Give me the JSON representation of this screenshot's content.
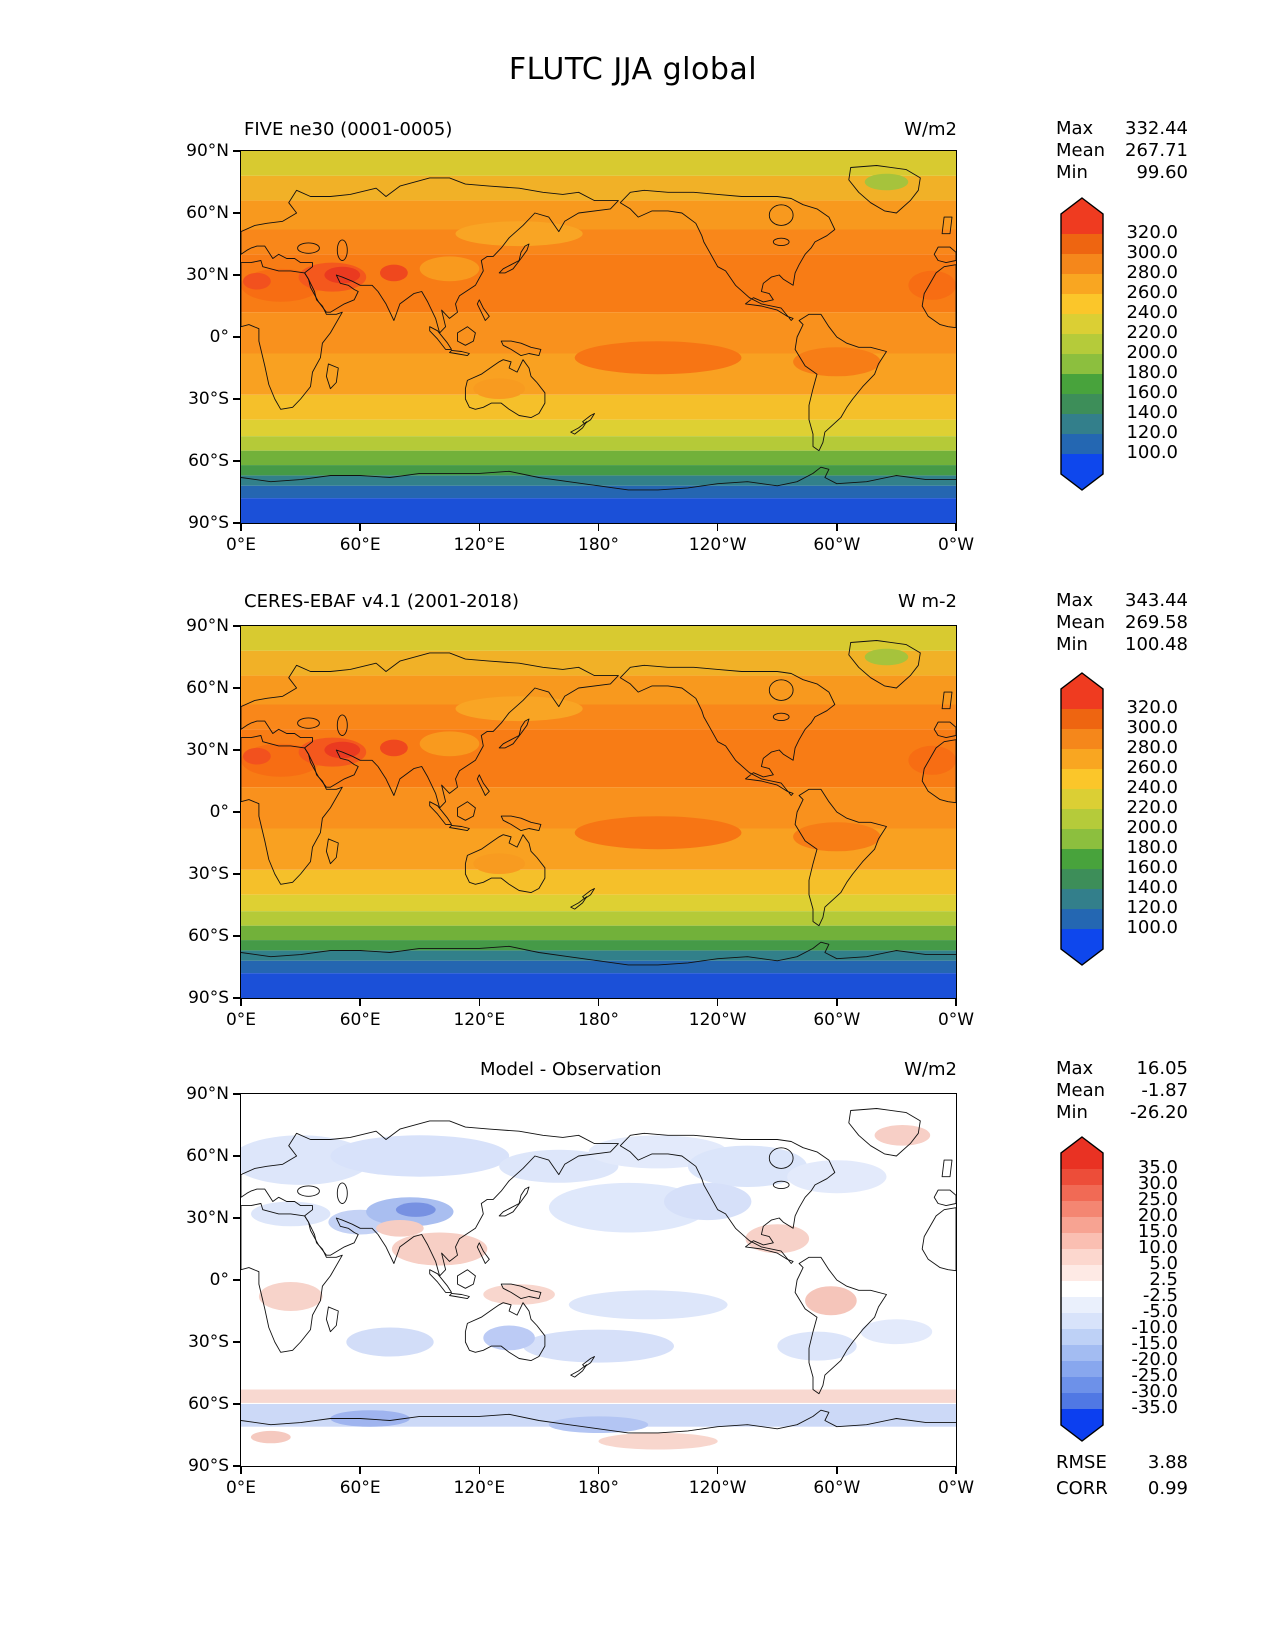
{
  "figure": {
    "title": "FLUTC JJA global"
  },
  "axes": {
    "lat_labels": [
      "90°N",
      "60°N",
      "30°N",
      "0°",
      "30°S",
      "60°S",
      "90°S"
    ],
    "lon_labels": [
      "0°E",
      "60°E",
      "120°E",
      "180°",
      "120°W",
      "60°W",
      "0°W"
    ]
  },
  "panels": [
    {
      "title": "FIVE ne30 (0001-0005)",
      "unit": "W/m2",
      "stats": [
        {
          "label": "Max",
          "value": "332.44"
        },
        {
          "label": "Mean",
          "value": "267.71"
        },
        {
          "label": "Min",
          "value": "99.60"
        }
      ],
      "colorbar": {
        "seg_h": 20,
        "labels": [
          "320.0",
          "300.0",
          "280.0",
          "260.0",
          "240.0",
          "220.0",
          "200.0",
          "180.0",
          "160.0",
          "140.0",
          "120.0",
          "100.0"
        ],
        "colors": [
          "#ef3b20",
          "#ee6511",
          "#f5871b",
          "#f9a621",
          "#fbc62a",
          "#dbcf34",
          "#b5cb3a",
          "#8cbf3e",
          "#48a33c",
          "#3d8e59",
          "#337f8b",
          "#2467b2",
          "#0e47ed"
        ]
      }
    },
    {
      "title": "CERES-EBAF v4.1 (2001-2018)",
      "unit": "W m-2",
      "stats": [
        {
          "label": "Max",
          "value": "343.44"
        },
        {
          "label": "Mean",
          "value": "269.58"
        },
        {
          "label": "Min",
          "value": "100.48"
        }
      ],
      "colorbar": {
        "seg_h": 20,
        "labels": [
          "320.0",
          "300.0",
          "280.0",
          "260.0",
          "240.0",
          "220.0",
          "200.0",
          "180.0",
          "160.0",
          "140.0",
          "120.0",
          "100.0"
        ],
        "colors": [
          "#ef3b20",
          "#ee6511",
          "#f5871b",
          "#f9a621",
          "#fbc62a",
          "#dbcf34",
          "#b5cb3a",
          "#8cbf3e",
          "#48a33c",
          "#3d8e59",
          "#337f8b",
          "#2467b2",
          "#0e47ed"
        ]
      }
    },
    {
      "title": "Model - Observation",
      "unit": "W/m2",
      "stats": [
        {
          "label": "Max",
          "value": "16.05"
        },
        {
          "label": "Mean",
          "value": "-1.87"
        },
        {
          "label": "Min",
          "value": "-26.20"
        }
      ],
      "colorbar": {
        "seg_h": 16,
        "labels": [
          "35.0",
          "30.0",
          "25.0",
          "20.0",
          "15.0",
          "10.0",
          "5.0",
          "2.5",
          "-2.5",
          "-5.0",
          "-10.0",
          "-15.0",
          "-20.0",
          "-25.0",
          "-30.0",
          "-35.0"
        ],
        "colors": [
          "#e93223",
          "#ed4d39",
          "#f16a55",
          "#f48672",
          "#f7a392",
          "#fabfb2",
          "#fcd7ce",
          "#feeae5",
          "#ffffff",
          "#eaf0fc",
          "#d8e3fa",
          "#bed1f6",
          "#a3bcf2",
          "#88a7ee",
          "#6d91e9",
          "#5078e4",
          "#0c3ff0"
        ]
      },
      "metrics": [
        {
          "label": "RMSE",
          "value": "3.88"
        },
        {
          "label": "CORR",
          "value": "0.99"
        }
      ]
    }
  ],
  "chart_data": [
    {
      "type": "heatmap",
      "variable": "FLUTC",
      "season": "JJA",
      "region": "global",
      "title": "FIVE ne30 (0001-0005)",
      "units": "W/m2",
      "projection": "equirectangular",
      "lon_range": [
        0,
        360
      ],
      "lat_range": [
        -90,
        90
      ],
      "x_tick_labels": [
        "0°E",
        "60°E",
        "120°E",
        "180°",
        "120°W",
        "60°W",
        "0°W"
      ],
      "y_tick_labels": [
        "90°N",
        "60°N",
        "30°N",
        "0°",
        "30°S",
        "60°S",
        "90°S"
      ],
      "stats": {
        "max": 332.44,
        "mean": 267.71,
        "min": 99.6
      },
      "contour_levels": [
        100,
        120,
        140,
        160,
        180,
        200,
        220,
        240,
        260,
        280,
        300,
        320
      ],
      "palette_top_to_bottom": [
        "#ef3b20",
        "#ee6511",
        "#f5871b",
        "#f9a621",
        "#fbc62a",
        "#dbcf34",
        "#b5cb3a",
        "#8cbf3e",
        "#48a33c",
        "#3d8e59",
        "#337f8b",
        "#2467b2",
        "#0e47ed"
      ]
    },
    {
      "type": "heatmap",
      "variable": "FLUTC",
      "season": "JJA",
      "region": "global",
      "title": "CERES-EBAF v4.1 (2001-2018)",
      "units": "W m-2",
      "projection": "equirectangular",
      "lon_range": [
        0,
        360
      ],
      "lat_range": [
        -90,
        90
      ],
      "x_tick_labels": [
        "0°E",
        "60°E",
        "120°E",
        "180°",
        "120°W",
        "60°W",
        "0°W"
      ],
      "y_tick_labels": [
        "90°N",
        "60°N",
        "30°N",
        "0°",
        "30°S",
        "60°S",
        "90°S"
      ],
      "stats": {
        "max": 343.44,
        "mean": 269.58,
        "min": 100.48
      },
      "contour_levels": [
        100,
        120,
        140,
        160,
        180,
        200,
        220,
        240,
        260,
        280,
        300,
        320
      ],
      "palette_top_to_bottom": [
        "#ef3b20",
        "#ee6511",
        "#f5871b",
        "#f9a621",
        "#fbc62a",
        "#dbcf34",
        "#b5cb3a",
        "#8cbf3e",
        "#48a33c",
        "#3d8e59",
        "#337f8b",
        "#2467b2",
        "#0e47ed"
      ]
    },
    {
      "type": "heatmap",
      "variable": "FLUTC difference",
      "season": "JJA",
      "region": "global",
      "title": "Model - Observation",
      "units": "W/m2",
      "projection": "equirectangular",
      "lon_range": [
        0,
        360
      ],
      "lat_range": [
        -90,
        90
      ],
      "x_tick_labels": [
        "0°E",
        "60°E",
        "120°E",
        "180°",
        "120°W",
        "60°W",
        "0°W"
      ],
      "y_tick_labels": [
        "90°N",
        "60°N",
        "30°N",
        "0°",
        "30°S",
        "60°S",
        "90°S"
      ],
      "stats": {
        "max": 16.05,
        "mean": -1.87,
        "min": -26.2
      },
      "contour_levels": [
        -35,
        -30,
        -25,
        -20,
        -15,
        -10,
        -5,
        -2.5,
        2.5,
        5,
        10,
        15,
        20,
        25,
        30,
        35
      ],
      "palette_top_to_bottom": [
        "#e93223",
        "#ed4d39",
        "#f16a55",
        "#f48672",
        "#f7a392",
        "#fabfb2",
        "#fcd7ce",
        "#feeae5",
        "#ffffff",
        "#eaf0fc",
        "#d8e3fa",
        "#bed1f6",
        "#a3bcf2",
        "#88a7ee",
        "#6d91e9",
        "#5078e4",
        "#0c3ff0"
      ],
      "rmse": 3.88,
      "corr": 0.99
    }
  ]
}
